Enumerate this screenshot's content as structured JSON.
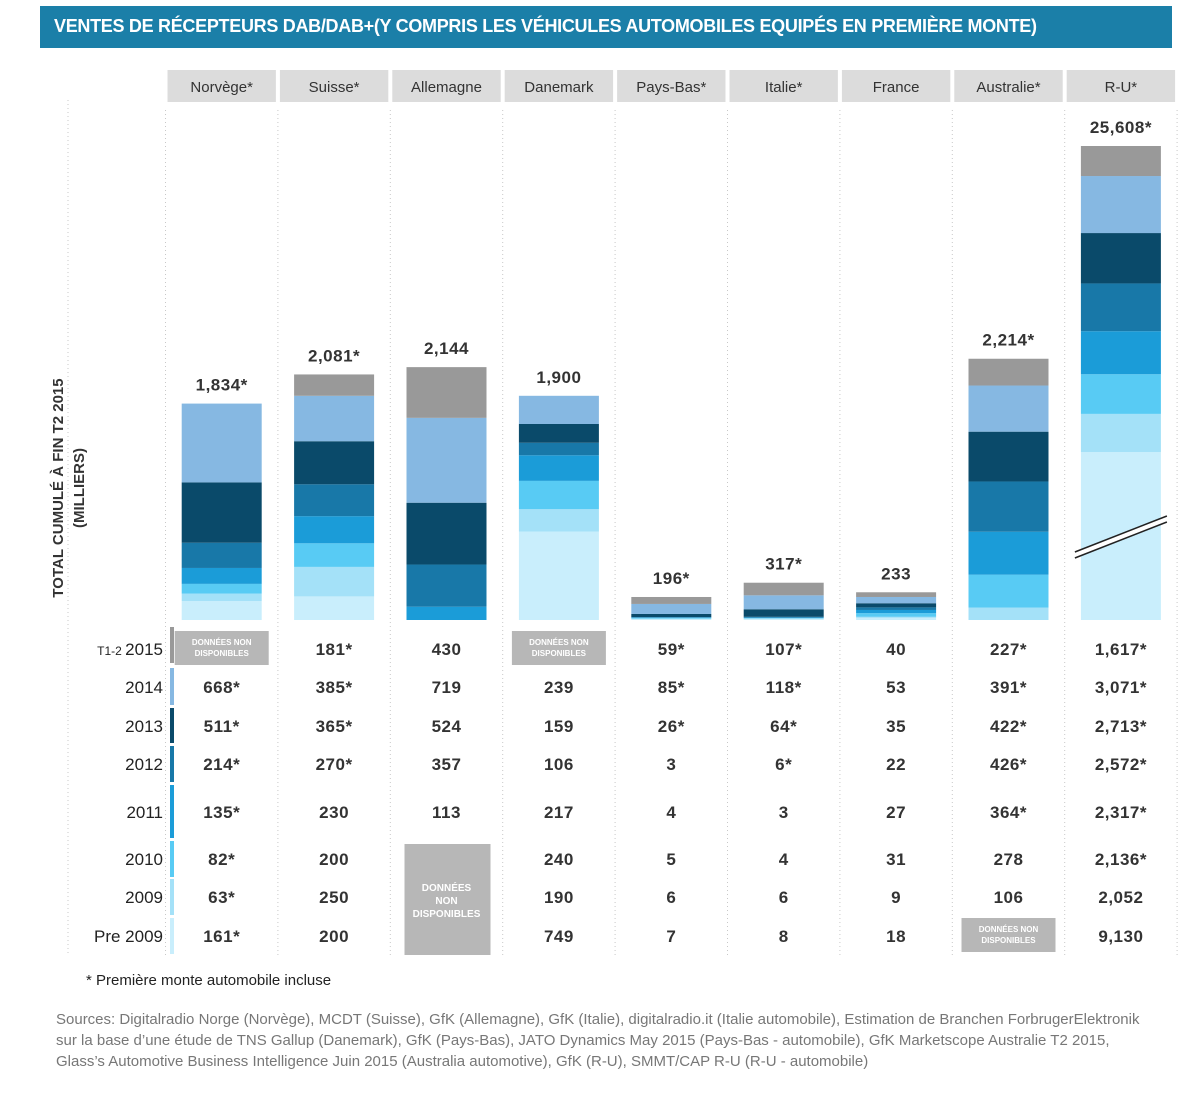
{
  "title": "VENTES DE RÉCEPTEURS DAB/DAB+(Y COMPRIS LES VÉHICULES AUTOMOBILES EQUIPÉS EN PREMIÈRE MONTE)",
  "chart_data": {
    "type": "bar",
    "stacked": true,
    "title": "VENTES DE RÉCEPTEURS DAB/DAB+(Y COMPRIS LES VÉHICULES AUTOMOBILES EQUIPÉS EN PREMIÈRE MONTE)",
    "ylabel_line1": "TOTAL CUMULÉ À FIN T2 2015",
    "ylabel_line2": "(MILLIERS)",
    "categories": [
      "Norvège*",
      "Suisse*",
      "Allemagne",
      "Danemark",
      "Pays-Bas*",
      "Italie*",
      "France",
      "Australie*",
      "R-U*"
    ],
    "totals": [
      "1,834*",
      "2,081*",
      "2,144",
      "1,900",
      "196*",
      "317*",
      "233",
      "2,214*",
      "25,608*"
    ],
    "total_values": [
      1834,
      2081,
      2144,
      1900,
      196,
      317,
      233,
      2214,
      25608
    ],
    "y_axis_break_on": "R-U*",
    "row_labels": [
      "2015",
      "2014",
      "2013",
      "2012",
      "2011",
      "2010",
      "2009",
      "Pre 2009"
    ],
    "row_prefix_2015": "T1-2",
    "series_colors": [
      "#999999",
      "#86b8e2",
      "#0a4a6a",
      "#1878a8",
      "#1b9cd8",
      "#58cbf4",
      "#a4e1f8",
      "#c9eefc"
    ],
    "series": [
      {
        "name": "2015",
        "labels": [
          "DONNÉES NON DISPONIBLES",
          "181*",
          "430",
          "DONNÉES NON DISPONIBLES",
          "59*",
          "107*",
          "40",
          "227*",
          "1,617*"
        ],
        "values": [
          null,
          181,
          430,
          null,
          59,
          107,
          40,
          227,
          1617
        ]
      },
      {
        "name": "2014",
        "labels": [
          "668*",
          "385*",
          "719",
          "239",
          "85*",
          "118*",
          "53",
          "391*",
          "3,071*"
        ],
        "values": [
          668,
          385,
          719,
          239,
          85,
          118,
          53,
          391,
          3071
        ]
      },
      {
        "name": "2013",
        "labels": [
          "511*",
          "365*",
          "524",
          "159",
          "26*",
          "64*",
          "35",
          "422*",
          "2,713*"
        ],
        "values": [
          511,
          365,
          524,
          159,
          26,
          64,
          35,
          422,
          2713
        ]
      },
      {
        "name": "2012",
        "labels": [
          "214*",
          "270*",
          "357",
          "106",
          "3",
          "6*",
          "22",
          "426*",
          "2,572*"
        ],
        "values": [
          214,
          270,
          357,
          106,
          3,
          6,
          22,
          426,
          2572
        ]
      },
      {
        "name": "2011",
        "labels": [
          "135*",
          "230",
          "113",
          "217",
          "4",
          "3",
          "27",
          "364*",
          "2,317*"
        ],
        "values": [
          135,
          230,
          113,
          217,
          4,
          3,
          27,
          364,
          2317
        ]
      },
      {
        "name": "2010",
        "labels": [
          "82*",
          "200",
          "",
          "240",
          "5",
          "4",
          "31",
          "278",
          "2,136*"
        ],
        "values": [
          82,
          200,
          null,
          240,
          5,
          4,
          31,
          278,
          2136
        ]
      },
      {
        "name": "2009",
        "labels": [
          "63*",
          "250",
          "",
          "190",
          "6",
          "6",
          "9",
          "106",
          "2,052"
        ],
        "values": [
          63,
          250,
          null,
          190,
          6,
          6,
          9,
          106,
          2052
        ]
      },
      {
        "name": "Pre 2009",
        "labels": [
          "161*",
          "200",
          "",
          "749",
          "7",
          "8",
          "18",
          "DONNÉES NON DISPONIBLES",
          "9,130"
        ],
        "values": [
          161,
          200,
          null,
          749,
          7,
          8,
          18,
          null,
          9130
        ]
      }
    ],
    "na_label": "DONNÉES NON DISPONIBLES",
    "na_label_lines": [
      "DONNÉES",
      "NON",
      "DISPONIBLES"
    ]
  },
  "footnote": "* Première monte automobile incluse",
  "sources": "Sources: Digitalradio Norge (Norvège), MCDT (Suisse), GfK (Allemagne), GfK (Italie), digitalradio.it (Italie automobile), Estimation de Branchen ForbrugerElektronik sur la base d’une étude de TNS Gallup (Danemark), GfK (Pays-Bas), JATO Dynamics May 2015 (Pays-Bas - automobile), GfK Marketscope Australie T2 2015, Glass’s Automotive Business Intelligence Juin 2015 (Australia automotive), GfK (R-U), SMMT/CAP R-U (R-U - automobile)"
}
